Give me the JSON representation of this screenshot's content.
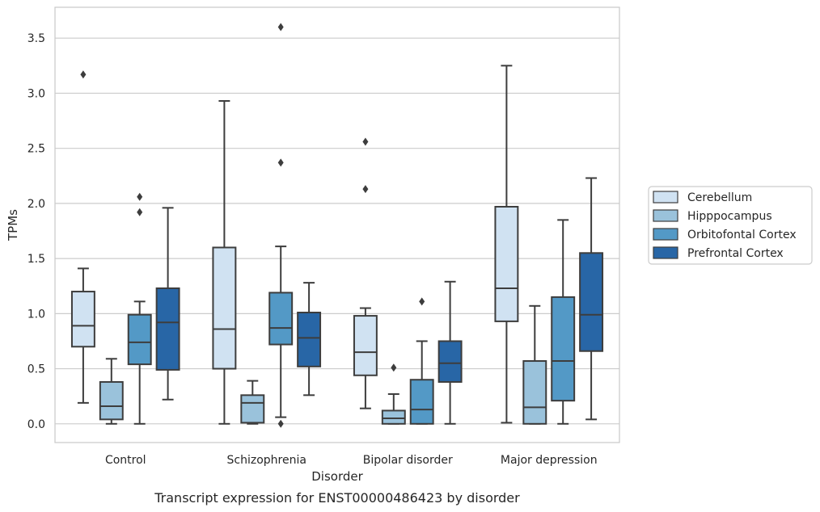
{
  "chart_data": {
    "type": "box",
    "xlabel": "Disorder",
    "ylabel": "TPMs",
    "caption": "Transcript expression for ENST00000486423 by disorder",
    "ylim": [
      -0.17,
      3.78
    ],
    "yticks": [
      0.0,
      0.5,
      1.0,
      1.5,
      2.0,
      2.5,
      3.0,
      3.5
    ],
    "ytick_labels": [
      "0.0",
      "0.5",
      "1.0",
      "1.5",
      "2.0",
      "2.5",
      "3.0",
      "3.5"
    ],
    "grid": "horizontal",
    "legend_position": "right",
    "categories": [
      "Control",
      "Schizophrenia",
      "Bipolar disorder",
      "Major depression"
    ],
    "series": [
      {
        "name": "Cerebellum",
        "color": "#d0e2f2",
        "boxes": [
          {
            "category": "Control",
            "whislo": 0.19,
            "q1": 0.7,
            "med": 0.89,
            "q3": 1.2,
            "whishi": 1.41,
            "fliers": [
              3.17
            ]
          },
          {
            "category": "Schizophrenia",
            "whislo": 0.0,
            "q1": 0.5,
            "med": 0.86,
            "q3": 1.6,
            "whishi": 2.93,
            "fliers": []
          },
          {
            "category": "Bipolar disorder",
            "whislo": 0.14,
            "q1": 0.44,
            "med": 0.65,
            "q3": 0.98,
            "whishi": 1.05,
            "fliers": [
              2.13,
              2.56
            ]
          },
          {
            "category": "Major depression",
            "whislo": 0.01,
            "q1": 0.93,
            "med": 1.23,
            "q3": 1.97,
            "whishi": 3.25,
            "fliers": []
          }
        ]
      },
      {
        "name": "Hipppocampus",
        "color": "#9ac2db",
        "boxes": [
          {
            "category": "Control",
            "whislo": 0.0,
            "q1": 0.04,
            "med": 0.16,
            "q3": 0.38,
            "whishi": 0.59,
            "fliers": []
          },
          {
            "category": "Schizophrenia",
            "whislo": 0.0,
            "q1": 0.01,
            "med": 0.19,
            "q3": 0.26,
            "whishi": 0.39,
            "fliers": []
          },
          {
            "category": "Bipolar disorder",
            "whislo": 0.0,
            "q1": 0.0,
            "med": 0.05,
            "q3": 0.12,
            "whishi": 0.27,
            "fliers": [
              0.51
            ]
          },
          {
            "category": "Major depression",
            "whislo": 0.0,
            "q1": 0.0,
            "med": 0.15,
            "q3": 0.57,
            "whishi": 1.07,
            "fliers": []
          }
        ]
      },
      {
        "name": "Orbitofontal Cortex",
        "color": "#5399c6",
        "boxes": [
          {
            "category": "Control",
            "whislo": 0.0,
            "q1": 0.54,
            "med": 0.74,
            "q3": 0.99,
            "whishi": 1.11,
            "fliers": [
              1.92,
              2.06
            ]
          },
          {
            "category": "Schizophrenia",
            "whislo": 0.06,
            "q1": 0.72,
            "med": 0.87,
            "q3": 1.19,
            "whishi": 1.61,
            "fliers": [
              0.0,
              2.37,
              3.6
            ]
          },
          {
            "category": "Bipolar disorder",
            "whislo": 0.0,
            "q1": 0.0,
            "med": 0.13,
            "q3": 0.4,
            "whishi": 0.75,
            "fliers": [
              1.11
            ]
          },
          {
            "category": "Major depression",
            "whislo": 0.0,
            "q1": 0.21,
            "med": 0.57,
            "q3": 1.15,
            "whishi": 1.85,
            "fliers": []
          }
        ]
      },
      {
        "name": "Prefrontal Cortex",
        "color": "#2866a6",
        "boxes": [
          {
            "category": "Control",
            "whislo": 0.22,
            "q1": 0.49,
            "med": 0.92,
            "q3": 1.23,
            "whishi": 1.96,
            "fliers": []
          },
          {
            "category": "Schizophrenia",
            "whislo": 0.26,
            "q1": 0.52,
            "med": 0.78,
            "q3": 1.01,
            "whishi": 1.28,
            "fliers": []
          },
          {
            "category": "Bipolar disorder",
            "whislo": 0.0,
            "q1": 0.38,
            "med": 0.55,
            "q3": 0.75,
            "whishi": 1.29,
            "fliers": []
          },
          {
            "category": "Major depression",
            "whislo": 0.04,
            "q1": 0.66,
            "med": 0.99,
            "q3": 1.55,
            "whishi": 2.23,
            "fliers": []
          }
        ]
      }
    ]
  }
}
